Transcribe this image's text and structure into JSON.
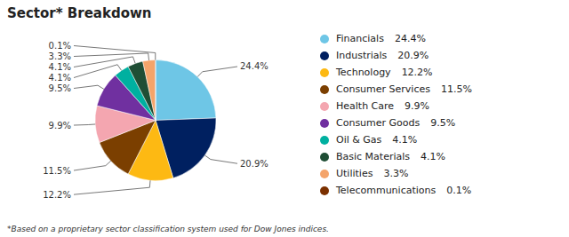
{
  "chart_data": {
    "type": "pie",
    "title": "Sector* Breakdown",
    "footnote": "*Based on a proprietary sector classification system used for Dow Jones indices.",
    "categories": [
      "Financials",
      "Industrials",
      "Technology",
      "Consumer Services",
      "Health Care",
      "Consumer Goods",
      "Oil & Gas",
      "Basic Materials",
      "Utilities",
      "Telecommunications"
    ],
    "values": [
      24.4,
      20.9,
      12.2,
      11.5,
      9.9,
      9.5,
      4.1,
      4.1,
      3.3,
      0.1
    ],
    "value_labels": [
      "24.4%",
      "20.9%",
      "12.2%",
      "11.5%",
      "9.9%",
      "9.5%",
      "4.1%",
      "4.1%",
      "3.3%",
      "0.1%"
    ],
    "colors": [
      "#6EC6E6",
      "#002060",
      "#FDB913",
      "#7B3F00",
      "#F4A6B0",
      "#7030A0",
      "#00B0A0",
      "#1F4E35",
      "#F4A46A",
      "#7B3000"
    ],
    "data_labels": true,
    "legend": "right"
  }
}
